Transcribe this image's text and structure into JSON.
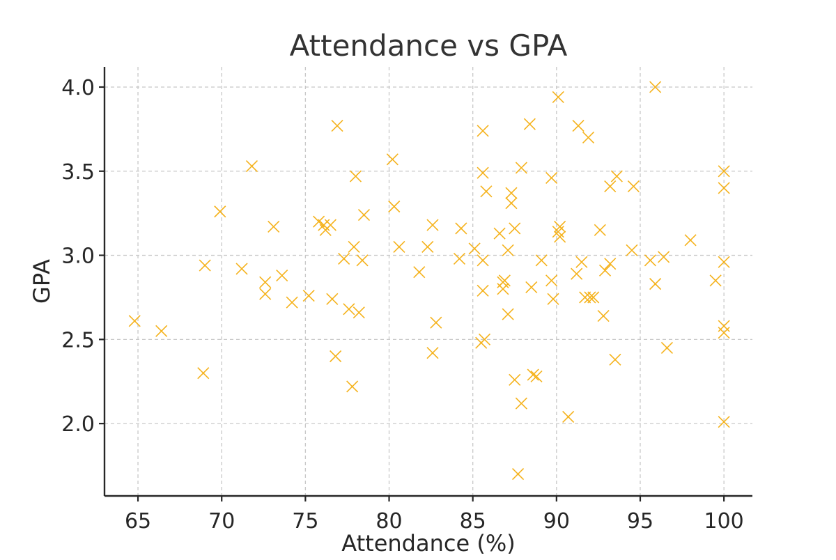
{
  "chart_data": {
    "type": "scatter",
    "title": "Attendance vs GPA",
    "xlabel": "Attendance (%)",
    "ylabel": "GPA",
    "xlim": [
      63,
      101.7
    ],
    "ylim": [
      1.57,
      4.12
    ],
    "xticks": [
      65,
      70,
      75,
      80,
      85,
      90,
      95,
      100
    ],
    "yticks": [
      2.0,
      2.5,
      3.0,
      3.5,
      4.0
    ],
    "xtick_labels": [
      "65",
      "70",
      "75",
      "80",
      "85",
      "90",
      "95",
      "100"
    ],
    "ytick_labels": [
      "2.0",
      "2.5",
      "3.0",
      "3.5",
      "4.0"
    ],
    "grid": true,
    "marker": "x",
    "color": "#f5b21b",
    "points": [
      [
        64.8,
        2.61
      ],
      [
        66.4,
        2.55
      ],
      [
        68.9,
        2.3
      ],
      [
        69.0,
        2.94
      ],
      [
        69.9,
        3.26
      ],
      [
        71.2,
        2.92
      ],
      [
        71.8,
        3.53
      ],
      [
        72.6,
        2.84
      ],
      [
        72.6,
        2.77
      ],
      [
        73.1,
        3.17
      ],
      [
        73.6,
        2.88
      ],
      [
        74.2,
        2.72
      ],
      [
        75.2,
        2.76
      ],
      [
        75.8,
        3.2
      ],
      [
        76.1,
        3.18
      ],
      [
        76.2,
        3.15
      ],
      [
        76.5,
        3.18
      ],
      [
        76.6,
        2.74
      ],
      [
        76.8,
        2.4
      ],
      [
        76.9,
        3.77
      ],
      [
        77.3,
        2.98
      ],
      [
        77.6,
        2.68
      ],
      [
        77.8,
        2.22
      ],
      [
        77.9,
        3.05
      ],
      [
        78.0,
        3.47
      ],
      [
        78.2,
        2.66
      ],
      [
        78.4,
        2.97
      ],
      [
        78.5,
        3.24
      ],
      [
        80.2,
        3.57
      ],
      [
        80.3,
        3.29
      ],
      [
        80.6,
        3.05
      ],
      [
        81.8,
        2.9
      ],
      [
        82.3,
        3.05
      ],
      [
        82.6,
        3.18
      ],
      [
        82.6,
        2.42
      ],
      [
        82.8,
        2.6
      ],
      [
        84.2,
        2.98
      ],
      [
        84.3,
        3.16
      ],
      [
        85.1,
        3.04
      ],
      [
        85.5,
        2.48
      ],
      [
        85.6,
        2.79
      ],
      [
        85.6,
        2.97
      ],
      [
        85.6,
        3.49
      ],
      [
        85.6,
        3.74
      ],
      [
        85.7,
        2.5
      ],
      [
        85.8,
        3.38
      ],
      [
        86.6,
        3.13
      ],
      [
        86.8,
        2.8
      ],
      [
        86.8,
        2.84
      ],
      [
        86.9,
        2.85
      ],
      [
        87.1,
        2.65
      ],
      [
        87.1,
        3.03
      ],
      [
        87.3,
        3.37
      ],
      [
        87.3,
        3.31
      ],
      [
        87.5,
        3.16
      ],
      [
        87.5,
        2.26
      ],
      [
        87.7,
        1.7
      ],
      [
        87.9,
        2.12
      ],
      [
        87.9,
        3.52
      ],
      [
        88.4,
        3.78
      ],
      [
        88.5,
        2.81
      ],
      [
        88.6,
        2.29
      ],
      [
        88.8,
        2.28
      ],
      [
        89.1,
        2.97
      ],
      [
        89.7,
        3.46
      ],
      [
        89.7,
        2.85
      ],
      [
        89.8,
        2.74
      ],
      [
        90.1,
        3.94
      ],
      [
        90.1,
        3.14
      ],
      [
        90.2,
        3.11
      ],
      [
        90.2,
        3.17
      ],
      [
        90.7,
        2.04
      ],
      [
        91.2,
        2.89
      ],
      [
        91.3,
        3.77
      ],
      [
        91.5,
        2.96
      ],
      [
        91.7,
        2.75
      ],
      [
        91.9,
        3.7
      ],
      [
        92.0,
        2.75
      ],
      [
        92.2,
        2.75
      ],
      [
        92.6,
        3.15
      ],
      [
        92.8,
        2.64
      ],
      [
        92.9,
        2.91
      ],
      [
        93.2,
        3.41
      ],
      [
        93.2,
        2.95
      ],
      [
        93.5,
        2.38
      ],
      [
        93.6,
        3.47
      ],
      [
        94.5,
        3.03
      ],
      [
        94.6,
        3.41
      ],
      [
        95.6,
        2.97
      ],
      [
        95.9,
        2.83
      ],
      [
        95.9,
        4.0
      ],
      [
        96.4,
        2.99
      ],
      [
        96.6,
        2.45
      ],
      [
        98.0,
        3.09
      ],
      [
        99.5,
        2.85
      ],
      [
        100.0,
        2.01
      ],
      [
        100.0,
        2.54
      ],
      [
        100.0,
        2.58
      ],
      [
        100.0,
        2.96
      ],
      [
        100.0,
        3.4
      ],
      [
        100.0,
        3.5
      ]
    ]
  }
}
